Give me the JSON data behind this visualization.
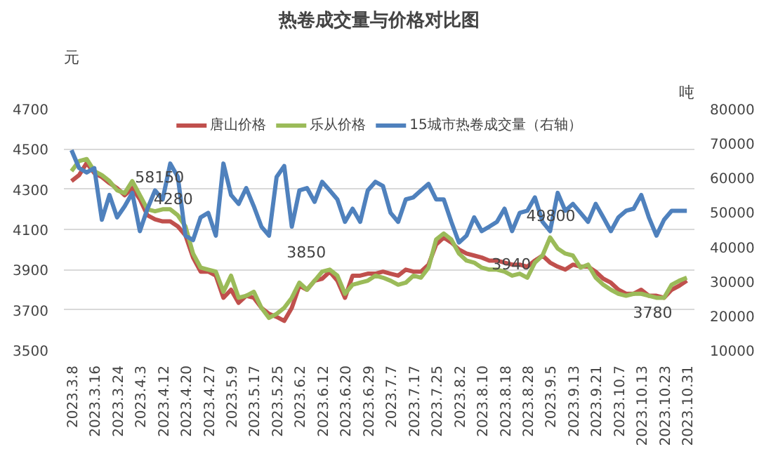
{
  "chart_data": {
    "type": "line",
    "title": "热卷成交量与价格对比图",
    "ylabel": "元",
    "y2label": "吨",
    "categories": [
      "2023.3.8",
      null,
      null,
      "2023.3.16",
      null,
      null,
      "2023.3.24",
      null,
      null,
      "2023.4.3",
      null,
      null,
      "2023.4.12",
      null,
      null,
      "2023.4.20",
      null,
      null,
      "2023.4.27",
      null,
      null,
      "2023.5.9",
      null,
      null,
      "2023.5.17",
      null,
      null,
      "2023.5.25",
      null,
      null,
      "2023.6.2",
      null,
      null,
      "2023.6.12",
      null,
      null,
      "2023.6.20",
      null,
      null,
      "2023.6.29",
      null,
      null,
      "2023.7.7",
      null,
      null,
      "2023.7.17",
      null,
      null,
      "2023.7.25",
      null,
      null,
      "2023.8.2",
      null,
      null,
      "2023.8.10",
      null,
      null,
      "2023.8.18",
      null,
      null,
      "2023.8.28",
      null,
      null,
      "2023.9.5",
      null,
      null,
      "2023.9.13",
      null,
      null,
      "2023.9.21",
      null,
      null,
      "2023.10.7",
      null,
      null,
      "2023.10.13",
      null,
      null,
      "2023.10.23",
      null,
      null,
      "2023.10.31"
    ],
    "series": [
      {
        "name": "唐山价格",
        "color": "#c0504d",
        "values": [
          4340,
          4370,
          4430,
          4380,
          4360,
          4330,
          4305,
          4270,
          4305,
          4250,
          4170,
          4150,
          4140,
          4140,
          4115,
          4070,
          3960,
          3890,
          3890,
          3870,
          3760,
          3800,
          3735,
          3770,
          3760,
          3710,
          3680,
          3665,
          3645,
          3710,
          3820,
          3800,
          3845,
          3855,
          3890,
          3845,
          3760,
          3870,
          3870,
          3880,
          3880,
          3890,
          3880,
          3870,
          3900,
          3890,
          3890,
          3925,
          4025,
          4060,
          4035,
          4000,
          3980,
          3970,
          3960,
          3945,
          3945,
          3935,
          3925,
          3925,
          3915,
          3945,
          3970,
          3935,
          3915,
          3900,
          3925,
          3915,
          3915,
          3890,
          3855,
          3835,
          3800,
          3780,
          3780,
          3800,
          3770,
          3770,
          3760,
          3800,
          3820,
          3845
        ]
      },
      {
        "name": "乐从价格",
        "color": "#9bbb59",
        "values": [
          4390,
          4440,
          4450,
          4390,
          4370,
          4340,
          4295,
          4280,
          4340,
          4270,
          4200,
          4190,
          4200,
          4200,
          4170,
          4115,
          3980,
          3910,
          3900,
          3890,
          3790,
          3870,
          3760,
          3770,
          3790,
          3710,
          3660,
          3680,
          3710,
          3760,
          3835,
          3800,
          3845,
          3890,
          3900,
          3870,
          3780,
          3825,
          3835,
          3845,
          3870,
          3860,
          3845,
          3825,
          3835,
          3870,
          3860,
          3910,
          4050,
          4080,
          4050,
          3980,
          3945,
          3935,
          3910,
          3900,
          3900,
          3890,
          3870,
          3880,
          3860,
          3935,
          3970,
          4060,
          4005,
          3980,
          3970,
          3910,
          3925,
          3860,
          3825,
          3800,
          3780,
          3770,
          3780,
          3780,
          3770,
          3760,
          3760,
          3825,
          3845,
          3860
        ]
      },
      {
        "name": "15城市热卷成交量（右轴）",
        "color": "#4f81bd",
        "axis": "y2",
        "values": [
          68000,
          62800,
          61500,
          62800,
          47800,
          55000,
          48500,
          51700,
          55600,
          44500,
          51000,
          56300,
          53700,
          64100,
          60200,
          43200,
          41900,
          48500,
          49800,
          43200,
          64100,
          55000,
          52400,
          57000,
          51700,
          45800,
          43200,
          60200,
          63400,
          45800,
          56300,
          57000,
          53000,
          58800,
          56300,
          53700,
          47200,
          51000,
          47200,
          56300,
          58800,
          57600,
          49800,
          47200,
          53700,
          54300,
          56300,
          58200,
          53700,
          53700,
          47200,
          41200,
          43200,
          48500,
          44500,
          45800,
          47200,
          51000,
          44500,
          49800,
          50400,
          54300,
          47200,
          44500,
          55600,
          50400,
          52400,
          49800,
          47200,
          52400,
          48500,
          44500,
          48500,
          50400,
          51000,
          55000,
          48500,
          43200,
          47800,
          50400,
          50400,
          50400
        ]
      }
    ],
    "ylim": [
      3500,
      4700
    ],
    "yticks": [
      3500,
      3700,
      3900,
      4100,
      4300,
      4500,
      4700
    ],
    "y2lim": [
      10000,
      80000
    ],
    "y2ticks": [
      10000,
      20000,
      30000,
      40000,
      50000,
      60000,
      70000,
      80000
    ],
    "annotations": [
      "58150",
      "4280",
      "3850",
      "49800",
      "3940",
      "3780"
    ],
    "grid": "y",
    "legend": "top",
    "line_style": "solid",
    "marker": "none"
  }
}
